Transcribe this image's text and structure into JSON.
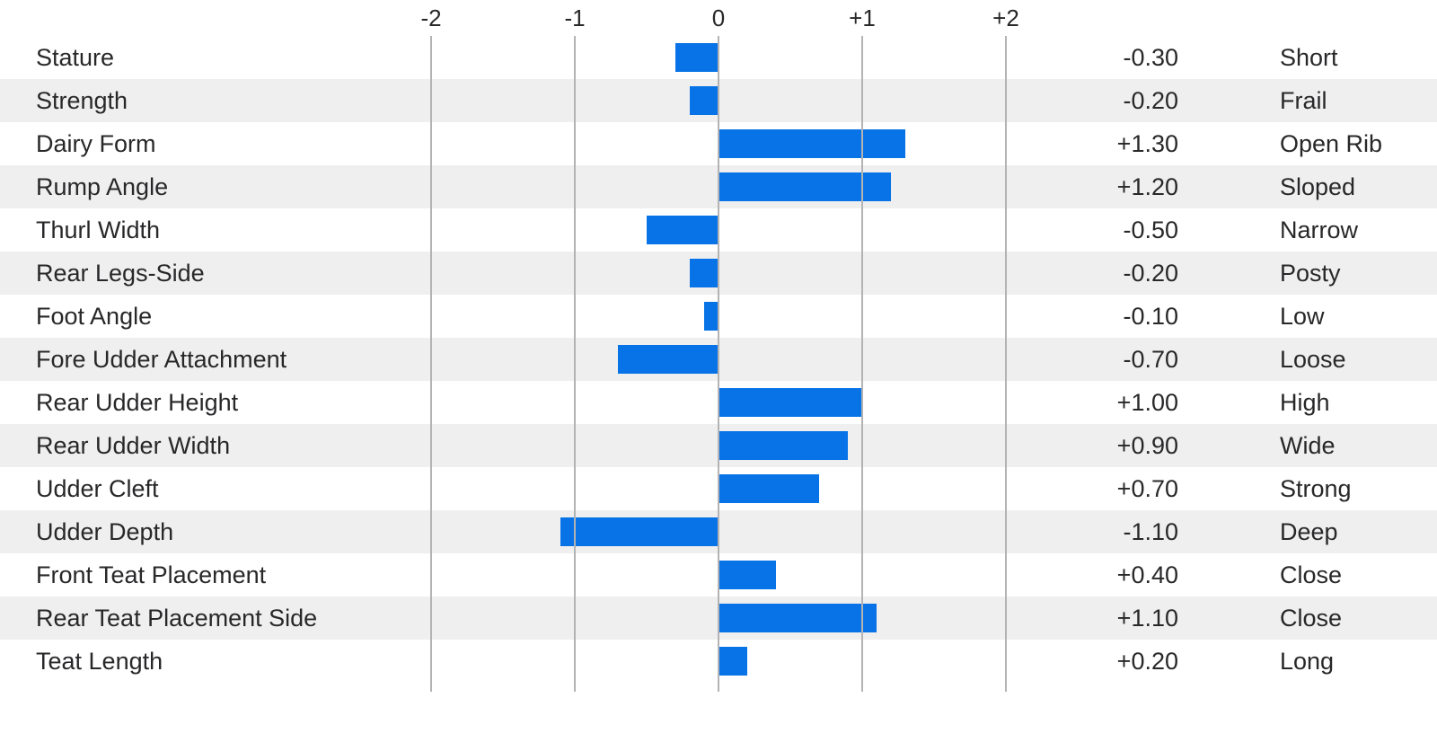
{
  "chart_data": {
    "type": "bar",
    "orientation": "horizontal",
    "diverging": true,
    "title": "",
    "x_axis": {
      "position": "top",
      "range": [
        -2,
        2
      ],
      "gridlines": true,
      "ticks": [
        {
          "label": "-2",
          "value": -2
        },
        {
          "label": "-1",
          "value": -1
        },
        {
          "label": "0",
          "value": 0
        },
        {
          "label": "+1",
          "value": 1
        },
        {
          "label": "+2",
          "value": 2
        }
      ]
    },
    "rows": [
      {
        "trait": "Stature",
        "value": -0.3,
        "value_label": "-0.30",
        "descriptor": "Short"
      },
      {
        "trait": "Strength",
        "value": -0.2,
        "value_label": "-0.20",
        "descriptor": "Frail"
      },
      {
        "trait": "Dairy Form",
        "value": 1.3,
        "value_label": "+1.30",
        "descriptor": "Open Rib"
      },
      {
        "trait": "Rump Angle",
        "value": 1.2,
        "value_label": "+1.20",
        "descriptor": "Sloped"
      },
      {
        "trait": "Thurl Width",
        "value": -0.5,
        "value_label": "-0.50",
        "descriptor": "Narrow"
      },
      {
        "trait": "Rear Legs-Side",
        "value": -0.2,
        "value_label": "-0.20",
        "descriptor": "Posty"
      },
      {
        "trait": "Foot Angle",
        "value": -0.1,
        "value_label": "-0.10",
        "descriptor": "Low"
      },
      {
        "trait": "Fore Udder Attachment",
        "value": -0.7,
        "value_label": "-0.70",
        "descriptor": "Loose"
      },
      {
        "trait": "Rear Udder Height",
        "value": 1.0,
        "value_label": "+1.00",
        "descriptor": "High"
      },
      {
        "trait": "Rear Udder Width",
        "value": 0.9,
        "value_label": "+0.90",
        "descriptor": "Wide"
      },
      {
        "trait": "Udder Cleft",
        "value": 0.7,
        "value_label": "+0.70",
        "descriptor": "Strong"
      },
      {
        "trait": "Udder Depth",
        "value": -1.1,
        "value_label": "-1.10",
        "descriptor": "Deep"
      },
      {
        "trait": "Front Teat Placement",
        "value": 0.4,
        "value_label": "+0.40",
        "descriptor": "Close"
      },
      {
        "trait": "Rear Teat Placement Side",
        "value": 1.1,
        "value_label": "+1.10",
        "descriptor": "Close"
      },
      {
        "trait": "Teat Length",
        "value": 0.2,
        "value_label": "+0.20",
        "descriptor": "Long"
      }
    ],
    "colors": {
      "bar": "#0873e6",
      "row_stripe": "#efefef",
      "gridline": "#b3b3b5",
      "text": "#28282a"
    },
    "legend": null
  }
}
